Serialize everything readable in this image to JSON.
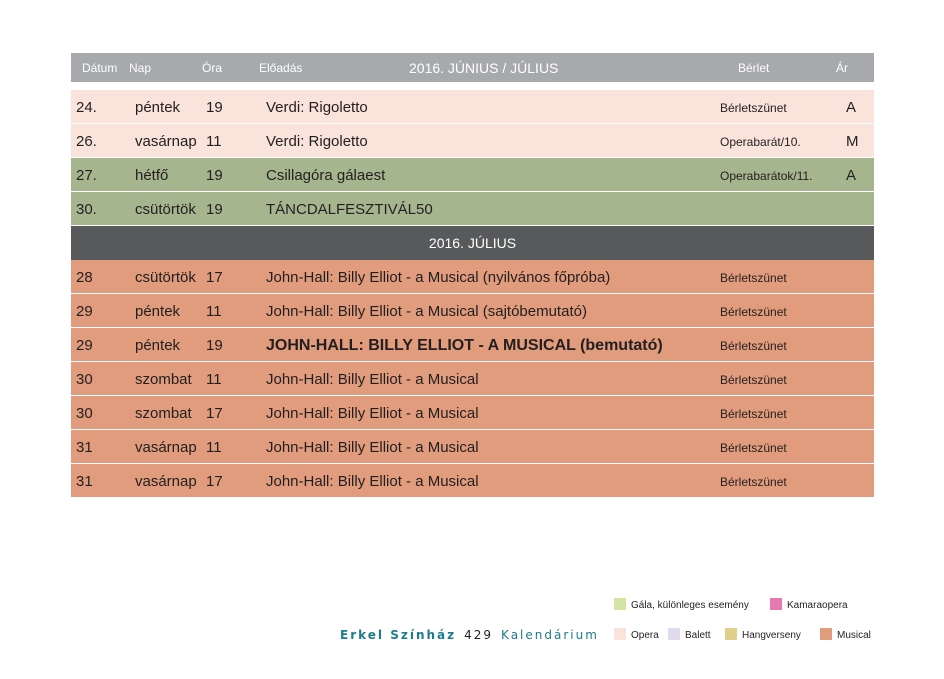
{
  "header": {
    "date": "Dátum",
    "day": "Nap",
    "time": "Óra",
    "performance": "Előadás",
    "title": "2016. JÚNIUS / JÚLIUS",
    "subscription": "Bérlet",
    "price": "Ár"
  },
  "june_rows": [
    {
      "date": "24.",
      "day": "péntek",
      "time": "19",
      "title": "Verdi: Rigoletto",
      "berlet": "Bérletszünet",
      "ar": "A",
      "color": "#f9e3da"
    },
    {
      "date": "26.",
      "day": "vasárnap",
      "time": "11",
      "title": "Verdi: Rigoletto",
      "berlet": "Operabarát/10.",
      "ar": "M",
      "color": "#f9e3da"
    },
    {
      "date": "27.",
      "day": "hétfő",
      "time": "19",
      "title": "Csillagóra gálaest",
      "berlet": "Operabarátok/11.",
      "ar": "A",
      "color": "#a5b58e"
    },
    {
      "date": "30.",
      "day": "csütörtök",
      "time": "19",
      "title": "TÁNCDALFESZTIVÁL50",
      "berlet": "",
      "ar": "",
      "color": "#a5b58e"
    }
  ],
  "july_header": "2016. JÚLIUS",
  "july_rows": [
    {
      "date": "28",
      "day": "csütörtök",
      "time": "17",
      "title": "John-Hall: Billy Elliot - a Musical (nyilvános főpróba)",
      "berlet": "Bérletszünet",
      "ar": "",
      "color": "#e09c7c",
      "bold": false
    },
    {
      "date": "29",
      "day": "péntek",
      "time": "11",
      "title": "John-Hall: Billy Elliot - a Musical (sajtóbemutató)",
      "berlet": "Bérletszünet",
      "ar": "",
      "color": "#e09c7c",
      "bold": false
    },
    {
      "date": "29",
      "day": "péntek",
      "time": "19",
      "title": "JOHN-HALL: BILLY ELLIOT - A MUSICAL (bemutató)",
      "berlet": "Bérletszünet",
      "ar": "",
      "color": "#e09c7c",
      "bold": true
    },
    {
      "date": "30",
      "day": "szombat",
      "time": "11",
      "title": "John-Hall: Billy Elliot - a Musical",
      "berlet": "Bérletszünet",
      "ar": "",
      "color": "#e09c7c",
      "bold": false
    },
    {
      "date": "30",
      "day": "szombat",
      "time": "17",
      "title": "John-Hall: Billy Elliot - a Musical",
      "berlet": "Bérletszünet",
      "ar": "",
      "color": "#e09c7c",
      "bold": false
    },
    {
      "date": "31",
      "day": "vasárnap",
      "time": "11",
      "title": "John-Hall: Billy Elliot - a Musical",
      "berlet": "Bérletszünet",
      "ar": "",
      "color": "#e09c7c",
      "bold": false
    },
    {
      "date": "31",
      "day": "vasárnap",
      "time": "17",
      "title": "John-Hall: Billy Elliot - a Musical",
      "berlet": "Bérletszünet",
      "ar": "",
      "color": "#e09c7c",
      "bold": false
    }
  ],
  "footer": {
    "brand": "Erkel Színház",
    "page": "429",
    "section": "Kalendárium"
  },
  "legend": {
    "gala": {
      "label": "Gála, különleges esemény",
      "color": "#d3e4a5"
    },
    "kamara": {
      "label": "Kamaraopera",
      "color": "#e57bb0"
    },
    "opera": {
      "label": "Opera",
      "color": "#f9e3da"
    },
    "balett": {
      "label": "Balett",
      "color": "#e1d9ee"
    },
    "hangverseny": {
      "label": "Hangverseny",
      "color": "#e1cf8e"
    },
    "musical": {
      "label": "Musical",
      "color": "#e09c7c"
    }
  }
}
